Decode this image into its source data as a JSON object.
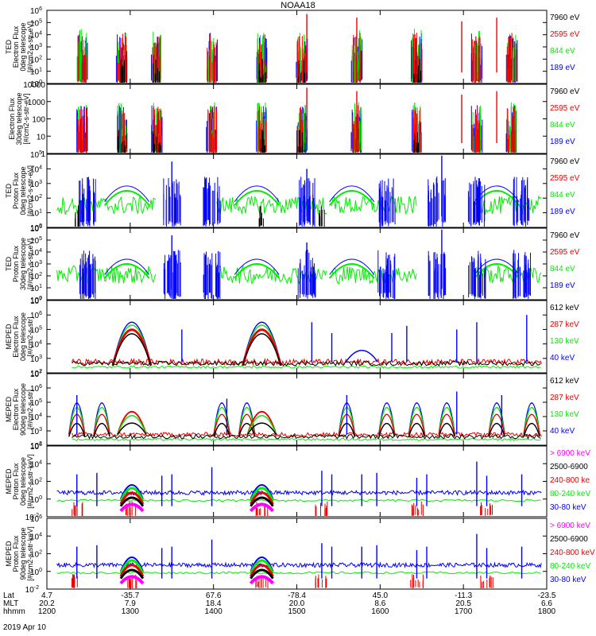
{
  "title": "NOAA18",
  "date_label": "2019 Apr 10",
  "colors": {
    "blue": "#0000ff",
    "green": "#00ee00",
    "red": "#ee0000",
    "black": "#000000",
    "magenta": "#ff00ff"
  },
  "time_axis": {
    "row_labels": [
      "Lat",
      "MLT",
      "hhmm"
    ],
    "ticks": [
      {
        "lat": "4.7",
        "mlt": "20.2",
        "hhmm": "1200"
      },
      {
        "lat": "-35.7",
        "mlt": "7.9",
        "hhmm": "1300"
      },
      {
        "lat": "67.6",
        "mlt": "18.4",
        "hhmm": "1400"
      },
      {
        "lat": "-78.4",
        "mlt": "20.0",
        "hhmm": "1500"
      },
      {
        "lat": "45.0",
        "mlt": "8.6",
        "hhmm": "1600"
      },
      {
        "lat": "-11.3",
        "mlt": "20.5",
        "hhmm": "1700"
      },
      {
        "lat": "-23.5",
        "mlt": "6.6",
        "hhmm": "1800"
      }
    ]
  },
  "chart_data": [
    {
      "type": "scatter",
      "ylabel": [
        "TED",
        "Electron Flux",
        "0deg telescope",
        "[#/cm2-s-str-eV]"
      ],
      "log_scale": true,
      "ylim_exp": [
        0,
        6
      ],
      "yticks": [
        "10^0",
        "10^1",
        "10^2",
        "10^3",
        "10^4",
        "10^5",
        "10^6"
      ],
      "legend": [
        {
          "label": "7960 eV",
          "color": "black"
        },
        {
          "label": "2595 eV",
          "color": "red"
        },
        {
          "label": "844 eV",
          "color": "green"
        },
        {
          "label": "189 eV",
          "color": "blue"
        }
      ]
    },
    {
      "type": "scatter",
      "ylabel": [
        "Electron Flux",
        "30deg telescope",
        "[#/cm2-s-str-eV]"
      ],
      "log_scale": true,
      "ylim_exp": [
        0,
        4
      ],
      "yticks": [
        "1",
        "10",
        "100",
        "1000",
        "10000"
      ],
      "legend": [
        {
          "label": "7960 eV",
          "color": "black"
        },
        {
          "label": "2595 eV",
          "color": "red"
        },
        {
          "label": "844 eV",
          "color": "green"
        },
        {
          "label": "189 eV",
          "color": "blue"
        }
      ]
    },
    {
      "type": "scatter",
      "ylabel": [
        "TED",
        "Proton Flux",
        "0deg telescope",
        "[#/cm2-s-str-eV]"
      ],
      "log_scale": true,
      "ylim_exp": [
        0,
        5
      ],
      "yticks": [
        "10^0",
        "10^1",
        "10^2",
        "10^3",
        "10^4",
        "10^5"
      ],
      "legend": [
        {
          "label": "7960 eV",
          "color": "black"
        },
        {
          "label": "2595 eV",
          "color": "red"
        },
        {
          "label": "844 eV",
          "color": "green"
        },
        {
          "label": "189 eV",
          "color": "blue"
        }
      ]
    },
    {
      "type": "scatter",
      "ylabel": [
        "TED",
        "Proton Flux",
        "30deg telescope",
        "[#/cm2-s-str-eV]"
      ],
      "log_scale": true,
      "ylim_exp": [
        0,
        6
      ],
      "yticks": [
        "10^0",
        "10^1",
        "10^2",
        "10^3",
        "10^4",
        "10^5",
        "10^6"
      ],
      "legend": [
        {
          "label": "7960 eV",
          "color": "black"
        },
        {
          "label": "2595 eV",
          "color": "red"
        },
        {
          "label": "844 eV",
          "color": "green"
        },
        {
          "label": "189 eV",
          "color": "blue"
        }
      ]
    },
    {
      "type": "scatter",
      "ylabel": [
        "MEPED",
        "Electron Flux",
        "0deg telescope",
        "[#/cm2-s-str]"
      ],
      "log_scale": true,
      "ylim_exp": [
        2,
        7
      ],
      "yticks": [
        "10^2",
        "10^3",
        "10^4",
        "10^5",
        "10^6",
        "10^7"
      ],
      "legend": [
        {
          "label": "612 keV",
          "color": "black"
        },
        {
          "label": "287 keV",
          "color": "red"
        },
        {
          "label": "130 keV",
          "color": "green"
        },
        {
          "label": "40 keV",
          "color": "blue"
        }
      ]
    },
    {
      "type": "scatter",
      "ylabel": [
        "MEPED",
        "Electron Flux",
        "90deg telescope",
        "[#/cm2-s-str]"
      ],
      "log_scale": true,
      "ylim_exp": [
        2,
        7
      ],
      "yticks": [
        "10^2",
        "10^3",
        "10^4",
        "10^5",
        "10^6",
        "10^7"
      ],
      "legend": [
        {
          "label": "612 keV",
          "color": "black"
        },
        {
          "label": "287 keV",
          "color": "red"
        },
        {
          "label": "130 keV",
          "color": "green"
        },
        {
          "label": "40 keV",
          "color": "blue"
        }
      ]
    },
    {
      "type": "scatter",
      "ylabel": [
        "MEPED",
        "Proton Flux",
        "0deg telescope",
        "[#/cm2-s-str-keV]"
      ],
      "log_scale": true,
      "ylim_exp": [
        -2,
        6
      ],
      "yticks": [
        "10^-2",
        "10^0",
        "10^2",
        "10^4",
        "10^6"
      ],
      "legend": [
        {
          "label": "> 6900 keV",
          "color": "magenta"
        },
        {
          "label": "2500-6900",
          "color": "black"
        },
        {
          "label": "240-800 ke",
          "color": "red"
        },
        {
          "label": "80-240 keV",
          "color": "green"
        },
        {
          "label": "30-80 keV",
          "color": "blue"
        }
      ]
    },
    {
      "type": "scatter",
      "ylabel": [
        "MEPED",
        "Proton Flux",
        "90deg telescope",
        "[#/cm2-s-str-keV]"
      ],
      "log_scale": true,
      "ylim_exp": [
        -2,
        6
      ],
      "yticks": [
        "10^-2",
        "10^0",
        "10^2",
        "10^4",
        "10^6"
      ],
      "legend": [
        {
          "label": "> 6900 keV",
          "color": "magenta"
        },
        {
          "label": "2500-6900",
          "color": "black"
        },
        {
          "label": "240-800 keV",
          "color": "red"
        },
        {
          "label": "80-240 keV",
          "color": "green"
        },
        {
          "label": "30-80 keV",
          "color": "blue"
        }
      ]
    }
  ]
}
